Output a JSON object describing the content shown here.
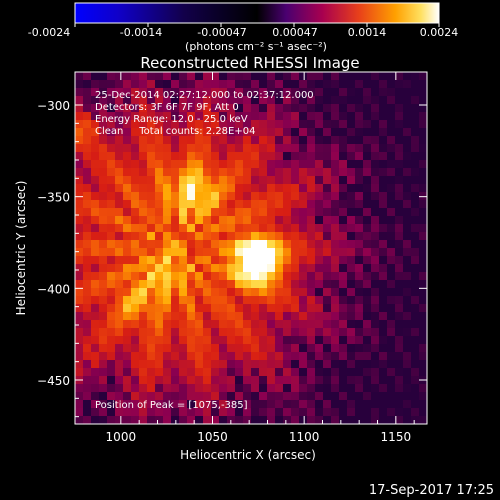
{
  "colorbar": {
    "tick_labels": [
      "-0.0024",
      "-0.0014",
      "-0.00047",
      "0.00047",
      "0.0014",
      "0.0024"
    ],
    "unit_label": "(photons cm⁻² s⁻¹ asec⁻²)"
  },
  "title": "Reconstructed RHESSI Image",
  "info": {
    "line1": "25-Dec-2014 02:27:12.000 to 02:37:12.000",
    "line2": "Detectors: 3F 6F 7F 9F, Att 0",
    "line3": "Energy Range: 12.0 - 25.0 keV",
    "line4": "Clean     Total counts: 2.28E+04"
  },
  "peak_label": "Position of Peak = [1075,-385]",
  "footer_timestamp": "17-Sep-2017 17:25",
  "chart_data": {
    "type": "heatmap",
    "xlabel": "Heliocentric X (arcsec)",
    "ylabel": "Heliocentric Y (arcsec)",
    "xlim": [
      975,
      1167
    ],
    "ylim": [
      -474,
      -282
    ],
    "x_ticks": [
      1000,
      1050,
      1100,
      1150
    ],
    "y_ticks": [
      -300,
      -350,
      -400,
      -450
    ],
    "x_tick_labels": [
      "1000",
      "1050",
      "1100",
      "1150"
    ],
    "y_tick_labels": [
      "−300",
      "−350",
      "−400",
      "−450"
    ],
    "colorbar_range": [
      -0.0024,
      0.0024
    ],
    "peak": [
      1075,
      -385
    ],
    "sources": [
      {
        "x": 1075,
        "y": -385,
        "amplitude": 1.0,
        "sigma": 9
      },
      {
        "x": 1040,
        "y": -347,
        "amplitude": 0.42,
        "sigma": 10
      },
      {
        "x": 1024,
        "y": -392,
        "amplitude": 0.3,
        "sigma": 9
      },
      {
        "x": 1008,
        "y": -408,
        "amplitude": 0.26,
        "sigma": 8
      },
      {
        "x": 978,
        "y": -314,
        "amplitude": 0.28,
        "sigma": 6
      }
    ],
    "colors": {
      "low": "#0000ff",
      "zero": "#000000",
      "mid": "#e8401a",
      "high": "#ffffff"
    }
  }
}
